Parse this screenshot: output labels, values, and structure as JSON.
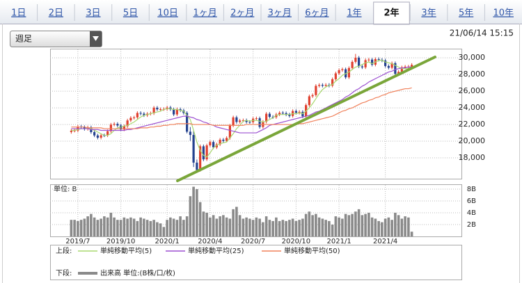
{
  "tabs": [
    {
      "label": "1日"
    },
    {
      "label": "2日"
    },
    {
      "label": "3日"
    },
    {
      "label": "5日"
    },
    {
      "label": "10日"
    },
    {
      "label": "1ヶ月"
    },
    {
      "label": "2ヶ月"
    },
    {
      "label": "3ヶ月"
    },
    {
      "label": "6ヶ月"
    },
    {
      "label": "1年"
    },
    {
      "label": "2年",
      "selected": true
    },
    {
      "label": "3年"
    },
    {
      "label": "5年"
    },
    {
      "label": "10年"
    }
  ],
  "dropdown": "週足",
  "timestamp": "21/06/14 15:15",
  "chart_data": [
    {
      "type": "candlestick",
      "legend_title": "上段:",
      "up_color": "#e0402f",
      "down_color": "#24428f",
      "grid": true,
      "ylim": [
        15500,
        31100
      ],
      "yticks": [
        {
          "value": 18000,
          "label": "18,000"
        },
        {
          "value": 20000,
          "label": "20,000"
        },
        {
          "value": 22000,
          "label": "22,000"
        },
        {
          "value": 24000,
          "label": "24,000"
        },
        {
          "value": 26000,
          "label": "26,000"
        },
        {
          "value": 28000,
          "label": "28,000"
        },
        {
          "value": 30000,
          "label": "30,000"
        }
      ],
      "open": [
        21100,
        21260,
        21280,
        21750,
        21690,
        21470,
        21660,
        21090,
        20690,
        20420,
        20710,
        20700,
        21200,
        21990,
        22080,
        21880,
        21410,
        21800,
        22490,
        22800,
        22850,
        23390,
        23300,
        23110,
        23290,
        23350,
        24020,
        23820,
        23840,
        23850,
        24040,
        23830,
        23210,
        23830,
        23690,
        23390,
        21140,
        20750,
        17430,
        16550,
        19390,
        17820,
        19500,
        19900,
        19260,
        19620,
        20180,
        20040,
        20390,
        21880,
        22860,
        22310,
        22480,
        22510,
        22310,
        22290,
        22700,
        22750,
        21710,
        22330,
        23290,
        22920,
        22880,
        23210,
        23410,
        23360,
        23200,
        23030,
        23620,
        23410,
        23520,
        22980,
        24330,
        25390,
        25530,
        26640,
        26750,
        26650,
        26760,
        26660,
        27440,
        28140,
        28520,
        28630,
        27660,
        28780,
        29520,
        30020,
        28970,
        28860,
        29720,
        29790,
        29180,
        29850,
        29770,
        29680,
        29020,
        28810,
        29360,
        28080,
        28320,
        28860,
        28940,
        28950
      ],
      "high": [
        21460,
        21480,
        21950,
        21950,
        21890,
        21860,
        21860,
        21290,
        20890,
        20910,
        20910,
        21400,
        22190,
        22280,
        22280,
        22080,
        22000,
        22690,
        23000,
        23050,
        23590,
        23590,
        23500,
        23490,
        23550,
        24220,
        24220,
        24040,
        24050,
        24240,
        24240,
        24030,
        24030,
        24030,
        23890,
        23590,
        21700,
        21200,
        17800,
        19600,
        19600,
        19700,
        20100,
        20100,
        19820,
        20380,
        20380,
        20590,
        22080,
        23060,
        23060,
        22680,
        22710,
        22710,
        22510,
        22900,
        22950,
        22950,
        22530,
        23490,
        23490,
        23120,
        23410,
        23610,
        23610,
        23560,
        23400,
        23820,
        23820,
        23720,
        23720,
        24530,
        25590,
        25730,
        26840,
        26950,
        26950,
        26960,
        26960,
        27640,
        28340,
        28720,
        28830,
        28830,
        28980,
        29720,
        30470,
        30220,
        29170,
        29920,
        29990,
        29990,
        30050,
        30050,
        29970,
        29880,
        29220,
        29560,
        29560,
        28520,
        29060,
        29140,
        29150,
        29360
      ],
      "low": [
        20900,
        21060,
        21080,
        21490,
        21270,
        21270,
        20890,
        20490,
        20220,
        20220,
        20500,
        20500,
        21000,
        21790,
        21680,
        21210,
        21210,
        21600,
        22290,
        22600,
        22650,
        23100,
        22910,
        22910,
        23090,
        23150,
        23620,
        23620,
        23640,
        23650,
        23630,
        23010,
        23010,
        23490,
        23190,
        20940,
        20050,
        16900,
        16360,
        16350,
        17600,
        17620,
        19300,
        19060,
        19060,
        19420,
        19840,
        19840,
        20190,
        21680,
        22110,
        22110,
        22280,
        22110,
        22090,
        22090,
        22500,
        21510,
        21510,
        22130,
        22720,
        22680,
        22680,
        23010,
        23160,
        23000,
        22830,
        22830,
        23210,
        23210,
        22780,
        22780,
        24130,
        25190,
        25330,
        26440,
        26450,
        26450,
        26460,
        26460,
        27240,
        27940,
        28320,
        27460,
        27460,
        28580,
        29320,
        28770,
        28660,
        28660,
        29520,
        28980,
        28980,
        29570,
        29480,
        28820,
        28610,
        28610,
        27880,
        27880,
        28120,
        28660,
        28740,
        28750
      ],
      "close": [
        21260,
        21280,
        21750,
        21690,
        21470,
        21660,
        21090,
        20690,
        20420,
        20710,
        20700,
        21200,
        21990,
        22080,
        21880,
        21410,
        21800,
        22490,
        22800,
        22850,
        23390,
        23300,
        23110,
        23290,
        23350,
        24020,
        23820,
        23840,
        23850,
        24040,
        23830,
        23210,
        23830,
        23690,
        23390,
        21140,
        20750,
        17430,
        16550,
        19390,
        17820,
        19500,
        19900,
        19260,
        19620,
        20180,
        20040,
        20390,
        21880,
        22860,
        22310,
        22480,
        22510,
        22310,
        22290,
        22700,
        22750,
        21710,
        22330,
        23290,
        22920,
        22880,
        23210,
        23410,
        23360,
        23200,
        23030,
        23620,
        23410,
        23520,
        22980,
        24330,
        25390,
        25530,
        26640,
        26750,
        26650,
        26760,
        26660,
        27440,
        28140,
        28520,
        28630,
        27660,
        28780,
        29520,
        30020,
        28970,
        28860,
        29720,
        29790,
        29180,
        29850,
        29770,
        29680,
        29020,
        28810,
        29360,
        28080,
        28320,
        28860,
        28940,
        28950,
        29160
      ],
      "series": [
        {
          "name": "単純移動平均(5)",
          "color": "#a8d86e",
          "values": [
            21300,
            21300,
            21400,
            21500,
            21500,
            21600,
            21500,
            21300,
            21100,
            20900,
            20700,
            20700,
            20900,
            21300,
            21600,
            21700,
            21800,
            21900,
            22100,
            22300,
            22600,
            22900,
            23100,
            23200,
            23300,
            23400,
            23500,
            23600,
            23800,
            23900,
            23900,
            23800,
            23800,
            23700,
            23600,
            23100,
            22600,
            21300,
            19900,
            18900,
            18300,
            18100,
            18600,
            19200,
            19500,
            19700,
            19800,
            19900,
            20400,
            20900,
            21500,
            21900,
            22400,
            22500,
            22400,
            22500,
            22500,
            22400,
            22300,
            22400,
            22600,
            22800,
            23100,
            23200,
            23200,
            23200,
            23200,
            23300,
            23300,
            23400,
            23300,
            23600,
            24000,
            24500,
            25100,
            25700,
            26200,
            26500,
            26700,
            26800,
            27200,
            27500,
            27900,
            28100,
            28300,
            28600,
            28900,
            29000,
            29200,
            29400,
            29500,
            29300,
            29500,
            29700,
            29700,
            29500,
            29400,
            29300,
            29100,
            28900,
            28700,
            28700,
            28700,
            28900
          ]
        },
        {
          "name": "単純移動平均(25)",
          "color": "#9b4fd0",
          "values": [
            21500,
            21500,
            21500,
            21500,
            21500,
            21500,
            21400,
            21400,
            21400,
            21300,
            21300,
            21300,
            21300,
            21300,
            21300,
            21300,
            21300,
            21400,
            21400,
            21500,
            21600,
            21700,
            21800,
            21900,
            22000,
            22100,
            22200,
            22300,
            22400,
            22500,
            22600,
            22700,
            22800,
            22900,
            23000,
            23000,
            22900,
            22800,
            22600,
            22500,
            22300,
            22200,
            22000,
            21900,
            21700,
            21600,
            21500,
            21400,
            21300,
            21200,
            21100,
            21000,
            21000,
            21000,
            21000,
            21000,
            21000,
            21200,
            21400,
            21600,
            21900,
            22000,
            22100,
            22200,
            22300,
            22400,
            22500,
            22600,
            22700,
            22800,
            22900,
            23000,
            23100,
            23300,
            23500,
            23600,
            23800,
            24000,
            24200,
            24400,
            24600,
            24800,
            25000,
            25300,
            25500,
            25800,
            26100,
            26300,
            26600,
            26800,
            27100,
            27300,
            27500,
            27700,
            27900,
            28100,
            28300,
            28400,
            28600,
            28700,
            28800,
            28800,
            28900,
            28900
          ]
        },
        {
          "name": "単純移動平均(50)",
          "color": "#f0805a",
          "values": [
            21700,
            21700,
            21700,
            21700,
            21700,
            21600,
            21600,
            21600,
            21600,
            21600,
            21500,
            21500,
            21500,
            21500,
            21500,
            21500,
            21500,
            21500,
            21500,
            21500,
            21500,
            21600,
            21600,
            21600,
            21700,
            21700,
            21800,
            21800,
            21900,
            21900,
            22000,
            22000,
            22100,
            22100,
            22100,
            22100,
            22100,
            22000,
            22000,
            22000,
            22000,
            22000,
            22000,
            21900,
            21900,
            21900,
            21900,
            21900,
            21900,
            21900,
            21900,
            21900,
            21900,
            22000,
            22000,
            22000,
            22000,
            22000,
            22000,
            22000,
            22000,
            22000,
            22000,
            22000,
            22000,
            22000,
            22000,
            22000,
            22000,
            22100,
            22100,
            22200,
            22300,
            22400,
            22500,
            22600,
            22700,
            22800,
            22900,
            23000,
            23200,
            23400,
            23600,
            23700,
            23900,
            24000,
            24200,
            24400,
            24600,
            24700,
            24900,
            25000,
            25200,
            25300,
            25500,
            25600,
            25800,
            25900,
            26000,
            26100,
            26200,
            26300,
            26300,
            26400
          ]
        }
      ]
    },
    {
      "type": "bar",
      "unit_label": "単位: B",
      "legend_title": "下段:",
      "name": "出来高 単位:(B株/口/枚)",
      "color": "#8a8a8a",
      "ylim": [
        0,
        8.7
      ],
      "yticks": [
        {
          "value": 2,
          "label": "2B"
        },
        {
          "value": 4,
          "label": "4B"
        },
        {
          "value": 6,
          "label": "6B"
        },
        {
          "value": 8,
          "label": "8B"
        }
      ],
      "categories": [
        null,
        null,
        "2019/7",
        null,
        null,
        null,
        null,
        null,
        null,
        null,
        null,
        null,
        null,
        null,
        null,
        "2019/10",
        null,
        null,
        null,
        null,
        null,
        null,
        null,
        null,
        null,
        null,
        null,
        null,
        null,
        "2020/1",
        null,
        null,
        null,
        null,
        null,
        null,
        null,
        null,
        null,
        null,
        null,
        null,
        "2020/4",
        null,
        null,
        null,
        null,
        null,
        null,
        null,
        null,
        null,
        null,
        null,
        null,
        "2020/7",
        null,
        null,
        null,
        null,
        null,
        null,
        null,
        null,
        null,
        null,
        null,
        null,
        "2020/10",
        null,
        null,
        null,
        null,
        null,
        null,
        null,
        null,
        null,
        null,
        null,
        null,
        "2021/1",
        null,
        null,
        null,
        null,
        null,
        null,
        null,
        null,
        null,
        null,
        null,
        null,
        null,
        "2021/4",
        null,
        null,
        null,
        null,
        null,
        null,
        null,
        null
      ],
      "values": [
        2.8,
        2.8,
        2.6,
        2.8,
        3.0,
        3.4,
        3.8,
        3.2,
        2.8,
        3.0,
        3.4,
        3.2,
        4.0,
        3.2,
        2.8,
        2.8,
        3.2,
        3.0,
        3.2,
        3.0,
        2.6,
        3.2,
        3.0,
        2.8,
        2.6,
        2.8,
        2.4,
        2.2,
        1.6,
        2.8,
        3.2,
        3.0,
        2.8,
        3.4,
        2.8,
        3.4,
        6.8,
        8.4,
        8.0,
        5.8,
        4.2,
        4.0,
        3.2,
        3.6,
        3.0,
        3.4,
        3.6,
        3.2,
        3.0,
        4.6,
        5.0,
        3.6,
        3.0,
        3.2,
        3.0,
        2.8,
        3.2,
        3.0,
        2.4,
        3.4,
        2.8,
        2.6,
        3.2,
        2.6,
        2.8,
        2.6,
        2.8,
        3.0,
        2.6,
        2.8,
        3.0,
        3.8,
        4.2,
        3.6,
        3.8,
        3.2,
        3.0,
        2.8,
        2.6,
        2.0,
        3.4,
        3.2,
        3.0,
        3.8,
        3.6,
        3.8,
        4.2,
        4.6,
        3.6,
        3.8,
        4.0,
        3.2,
        3.0,
        2.6,
        2.4,
        3.0,
        3.2,
        2.8,
        4.0,
        3.6,
        3.0,
        3.4,
        3.2,
        0.8
      ]
    }
  ]
}
